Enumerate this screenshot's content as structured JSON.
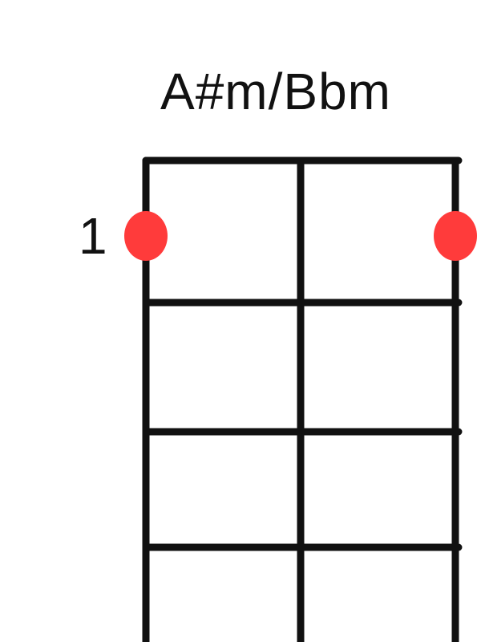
{
  "chord": {
    "name": "A#m/Bbm",
    "start_fret_label": "1"
  },
  "diagram": {
    "strings": 3,
    "frets_visible": 4,
    "fingered_positions": [
      {
        "string": 1,
        "fret": 1
      },
      {
        "string": 3,
        "fret": 1
      }
    ]
  },
  "colors": {
    "grid": "#111111",
    "marker": "#ff3b3b",
    "background": "#ffffff"
  }
}
